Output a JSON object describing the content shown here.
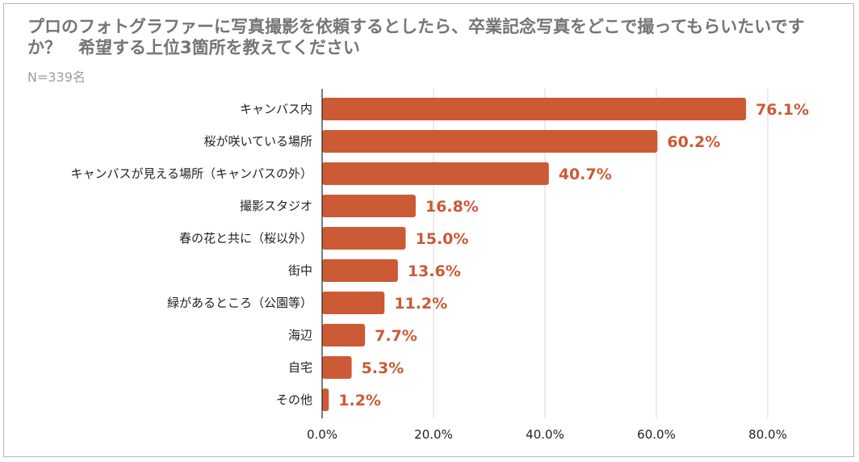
{
  "title": "プロのフォトグラファーに写真撮影を依頼するとしたら、卒業記念写真をどこで撮ってもらいたいですか？　希望する上位3箇所を教えてください",
  "subtitle": "N=339名",
  "colors": {
    "bar": "#cc5a35",
    "value_label": "#cc5a35",
    "grid": "#d9d9d9",
    "axis": "#222222",
    "title": "#757575",
    "subtitle": "#9e9e9e"
  },
  "chart_data": {
    "type": "bar",
    "orientation": "horizontal",
    "categories": [
      "キャンバス内",
      "桜が咲いている場所",
      "キャンバスが見える場所（キャンパスの外）",
      "撮影スタジオ",
      "春の花と共に（桜以外）",
      "街中",
      "緑があるところ（公園等）",
      "海辺",
      "自宅",
      "その他"
    ],
    "values": [
      76.1,
      60.2,
      40.7,
      16.8,
      15.0,
      13.6,
      11.2,
      7.7,
      5.3,
      1.2
    ],
    "value_labels": [
      "76.1%",
      "60.2%",
      "40.7%",
      "16.8%",
      "15.0%",
      "13.6%",
      "11.2%",
      "7.7%",
      "5.3%",
      "1.2%"
    ],
    "x_ticks": [
      0,
      20,
      40,
      60,
      80
    ],
    "x_tick_labels": [
      "0.0%",
      "20.0%",
      "40.0%",
      "60.0%",
      "80.0%"
    ],
    "xlim": [
      0,
      80
    ],
    "grid": true,
    "legend": "none"
  }
}
